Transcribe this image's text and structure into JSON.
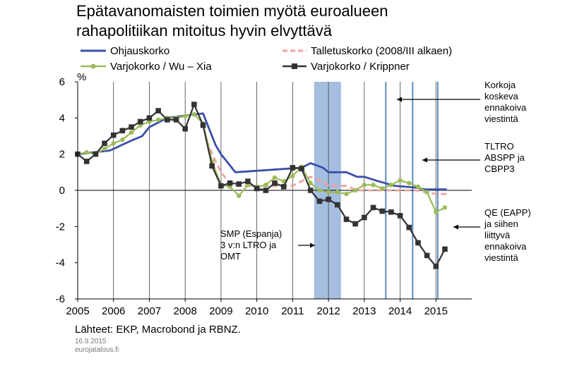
{
  "title_line1": "Epätavanomaisten toimien myötä euroalueen",
  "title_line2": "rahapolitiikan mitoitus hyvin elvyttävä",
  "unit": "%",
  "source": "Lähteet: EKP, Macrobond ja RBNZ.",
  "date": "16.9.2015",
  "site": "eurojatalous.fi",
  "colors": {
    "ohjaus": "#3b4fa8",
    "talletus": "#f0a0a0",
    "wuxia": "#9bbb59",
    "krippner": "#333333",
    "shade": "#9bb7dc",
    "vline": "#4f81bd"
  },
  "chart_data": {
    "type": "line",
    "x_range": [
      2005.0,
      2016.0
    ],
    "ylim": [
      -6,
      6
    ],
    "yticks": [
      6,
      4,
      2,
      0,
      -2,
      -4,
      -6
    ],
    "xticks": [
      "2005",
      "2006",
      "2007",
      "2008",
      "2009",
      "2010",
      "2011",
      "2012",
      "2013",
      "2014",
      "2015"
    ],
    "shaded_period": [
      2011.6,
      2012.35
    ],
    "vertical_lines": [
      2013.6,
      2014.35,
      2015.05
    ],
    "series": [
      {
        "name": "Ohjauskorko",
        "x": [
          2005.0,
          2005.9,
          2006.5,
          2006.8,
          2007.0,
          2007.5,
          2008.5,
          2008.6,
          2008.85,
          2009.0,
          2009.2,
          2009.4,
          2011.25,
          2011.5,
          2011.85,
          2012.0,
          2012.5,
          2012.8,
          2013.0,
          2013.4,
          2013.85,
          2014.45,
          2014.7,
          2015.0,
          2015.3
        ],
        "y": [
          2.0,
          2.2,
          2.75,
          3.0,
          3.5,
          4.0,
          4.25,
          3.75,
          2.5,
          2.0,
          1.5,
          1.0,
          1.25,
          1.5,
          1.25,
          1.0,
          1.0,
          0.75,
          0.75,
          0.5,
          0.25,
          0.15,
          0.05,
          0.05,
          0.05
        ]
      },
      {
        "name": "Talletuskorko (2008/III alkaen)",
        "x": [
          2008.6,
          2008.8,
          2009.0,
          2009.2,
          2009.4,
          2011.0,
          2011.25,
          2011.5,
          2011.85,
          2012.0,
          2012.5,
          2012.8,
          2014.45,
          2014.7,
          2015.0,
          2015.3
        ],
        "y": [
          2.75,
          1.8,
          1.0,
          0.5,
          0.25,
          0.25,
          0.5,
          0.75,
          0.5,
          0.25,
          0.25,
          0.0,
          0.0,
          -0.1,
          -0.2,
          -0.2
        ]
      },
      {
        "name": "Varjokorko / Wu – Xia",
        "x": [
          2005.0,
          2005.25,
          2005.5,
          2005.75,
          2006.0,
          2006.25,
          2006.5,
          2006.75,
          2007.0,
          2007.25,
          2007.5,
          2007.75,
          2008.0,
          2008.25,
          2008.5,
          2008.75,
          2009.0,
          2009.25,
          2009.5,
          2009.75,
          2010.0,
          2010.25,
          2010.5,
          2010.75,
          2011.0,
          2011.25,
          2011.5,
          2011.75,
          2012.0,
          2012.25,
          2012.5,
          2012.75,
          2013.0,
          2013.25,
          2013.5,
          2013.75,
          2014.0,
          2014.25,
          2014.5,
          2014.75,
          2015.0,
          2015.25
        ],
        "y": [
          2.0,
          2.1,
          2.0,
          2.3,
          2.6,
          2.8,
          3.2,
          3.6,
          3.8,
          3.9,
          4.0,
          4.0,
          4.1,
          4.2,
          3.7,
          1.6,
          0.3,
          0.2,
          -0.3,
          0.3,
          0.2,
          0.3,
          0.7,
          0.5,
          0.8,
          1.3,
          0.4,
          0.0,
          -0.1,
          -0.1,
          -0.2,
          0.0,
          0.3,
          0.3,
          0.1,
          0.3,
          0.55,
          0.4,
          0.2,
          -0.1,
          -1.2,
          -0.95
        ]
      },
      {
        "name": "Varjokorko / Krippner",
        "x": [
          2005.0,
          2005.25,
          2005.5,
          2005.75,
          2006.0,
          2006.25,
          2006.5,
          2006.75,
          2007.0,
          2007.25,
          2007.5,
          2007.75,
          2008.0,
          2008.25,
          2008.5,
          2008.75,
          2009.0,
          2009.25,
          2009.5,
          2009.75,
          2010.0,
          2010.25,
          2010.5,
          2010.75,
          2011.0,
          2011.25,
          2011.5,
          2011.75,
          2012.0,
          2012.25,
          2012.5,
          2012.75,
          2013.0,
          2013.25,
          2013.5,
          2013.75,
          2014.0,
          2014.25,
          2014.5,
          2014.75,
          2015.0,
          2015.25
        ],
        "y": [
          2.0,
          1.6,
          2.0,
          2.6,
          3.05,
          3.3,
          3.5,
          3.8,
          4.0,
          4.4,
          3.9,
          3.9,
          3.4,
          4.75,
          3.6,
          1.35,
          0.25,
          0.4,
          0.35,
          0.5,
          0.1,
          0.0,
          0.4,
          0.2,
          1.25,
          1.2,
          0.0,
          -0.6,
          -0.5,
          -0.8,
          -1.6,
          -1.85,
          -1.5,
          -0.95,
          -1.15,
          -1.2,
          -1.4,
          -2.05,
          -2.9,
          -3.6,
          -4.2,
          -3.25
        ]
      }
    ],
    "annotations": [
      {
        "id": "korkoja",
        "lines": [
          "Korkoja",
          "koskeva",
          "ennakoiva",
          "viestintä"
        ]
      },
      {
        "id": "tltro",
        "lines": [
          "TLTRO",
          "ABSPP ja",
          "CBPP3"
        ]
      },
      {
        "id": "qe",
        "lines": [
          "QE (EAPP)",
          "ja siihen",
          "liittyvä",
          "ennakoiva",
          "viestintä"
        ]
      },
      {
        "id": "smp",
        "lines": [
          "SMP (Espanja)",
          "3 v:n LTRO ja",
          "OMT"
        ]
      }
    ]
  }
}
